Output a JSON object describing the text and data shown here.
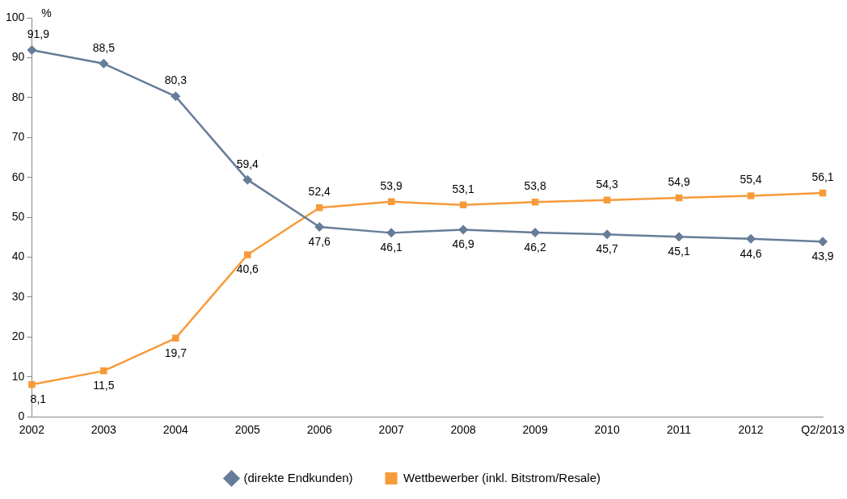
{
  "chart_data": {
    "type": "line",
    "ylabel": "%",
    "categories": [
      "2002",
      "2003",
      "2004",
      "2005",
      "2006",
      "2007",
      "2008",
      "2009",
      "2010",
      "2011",
      "2012",
      "Q2/2013"
    ],
    "series": [
      {
        "name": "(direkte Endkunden)",
        "color": "#667d99",
        "marker": "diamond",
        "values": [
          91.9,
          88.5,
          80.3,
          59.4,
          47.6,
          46.1,
          46.9,
          46.2,
          45.7,
          45.1,
          44.6,
          43.9
        ],
        "value_labels": [
          "91,9",
          "88,5",
          "80,3",
          "59,4",
          "47,6",
          "46,1",
          "46,9",
          "46,2",
          "45,7",
          "45,1",
          "44,6",
          "43,9"
        ]
      },
      {
        "name": "Wettbewerber (inkl. Bitstrom/Resale)",
        "color": "#f79a3a",
        "marker": "square",
        "values": [
          8.1,
          11.5,
          19.7,
          40.6,
          52.4,
          53.9,
          53.1,
          53.8,
          54.3,
          54.9,
          55.4,
          56.1
        ],
        "value_labels": [
          "8,1",
          "11,5",
          "19,7",
          "40,6",
          "52,4",
          "53,9",
          "53,1",
          "53,8",
          "54,3",
          "54,9",
          "55,4",
          "56,1"
        ]
      }
    ],
    "ylim": [
      0,
      100
    ],
    "yticks": [
      0,
      10,
      20,
      30,
      40,
      50,
      60,
      70,
      80,
      90,
      100
    ],
    "grid": false,
    "legend": "bottom",
    "line_style": "solid"
  }
}
